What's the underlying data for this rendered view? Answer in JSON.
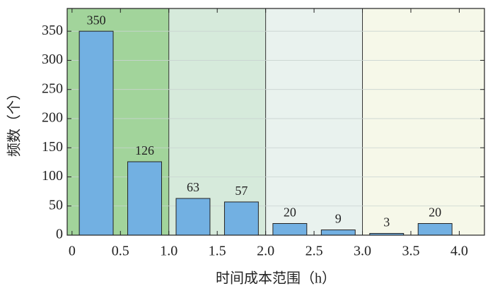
{
  "chart_data": {
    "type": "histogram",
    "x_label": "时间成本范围（h）",
    "y_label": "频数（个）",
    "bins": [
      0,
      0.5,
      1,
      1.5,
      2,
      2.5,
      3,
      3.5,
      4
    ],
    "values": [
      350,
      126,
      63,
      57,
      20,
      9,
      3,
      20
    ],
    "color": "#72b0e2",
    "bar_width_fraction": 0.7,
    "xlim": [
      -0.05,
      4.26
    ],
    "ylim": [
      0,
      389
    ],
    "xticks": [
      0,
      0.5,
      {
        "value": 1,
        "label": "1.0"
      },
      1.5,
      {
        "value": 2,
        "label": "2.0"
      },
      2.5,
      {
        "value": 3,
        "label": "3.0"
      },
      3.5,
      {
        "value": 4,
        "label": "4.0"
      }
    ],
    "yticks": [
      0,
      50,
      100,
      150,
      200,
      250,
      300,
      350
    ],
    "grid": true,
    "region_edges": [
      1,
      2,
      3
    ],
    "region_colors": [
      "#a2d49b",
      "#d6eadb",
      "#e9f2ee",
      "#f6f8e9"
    ]
  }
}
